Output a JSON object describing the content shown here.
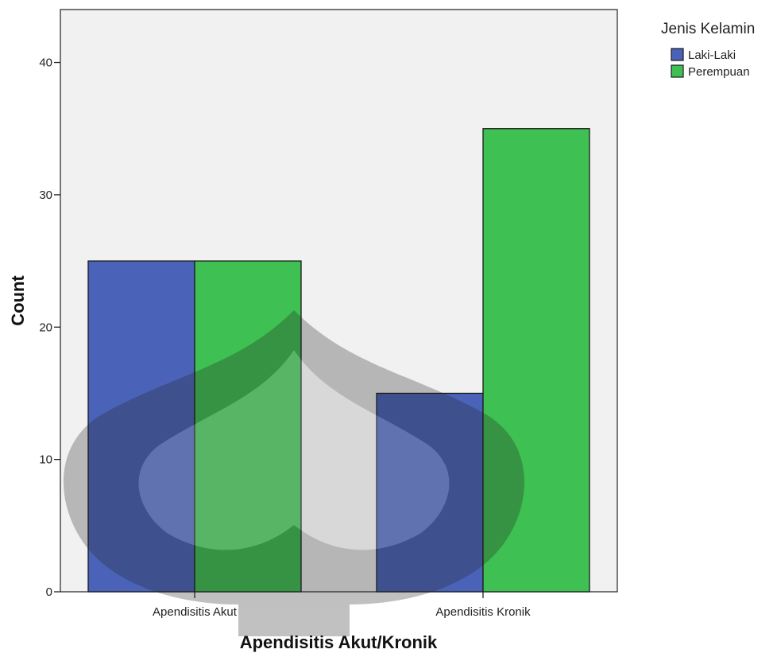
{
  "chart_data": {
    "type": "bar",
    "categories": [
      "Apendisitis Akut",
      "Apendisitis Kronik"
    ],
    "series": [
      {
        "name": "Laki-Laki",
        "values": [
          25,
          15
        ],
        "color": "#4a63b8"
      },
      {
        "name": "Perempuan",
        "values": [
          25,
          35
        ],
        "color": "#3fc052"
      }
    ],
    "xlabel": "Apendisitis Akut/Kronik",
    "ylabel": "Count",
    "ylim": [
      0,
      44
    ],
    "yticks": [
      0,
      10,
      20,
      30,
      40
    ],
    "legend_title": "Jenis Kelamin",
    "legend_position": "top-right",
    "background": "#f1f1f1",
    "grid": false
  }
}
